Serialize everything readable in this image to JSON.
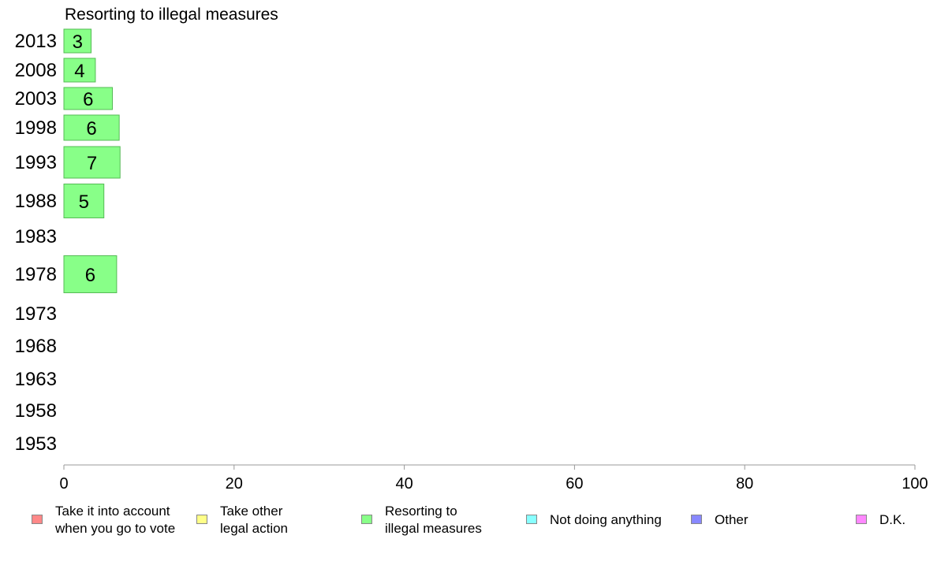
{
  "chart_data": {
    "type": "bar",
    "orientation": "horizontal",
    "title": "Resorting to illegal measures",
    "xlabel": "",
    "ylabel": "",
    "xlim": [
      0,
      100
    ],
    "x_ticks": [
      "0",
      "20",
      "40",
      "60",
      "80",
      "100"
    ],
    "categories": [
      "2013",
      "2008",
      "2003",
      "1998",
      "1993",
      "1988",
      "1983",
      "1978",
      "1973",
      "1968",
      "1963",
      "1958",
      "1953"
    ],
    "series": [
      {
        "name": "Resorting to illegal measures",
        "color": "#88ff88",
        "values": [
          3,
          4,
          6,
          6,
          7,
          5,
          null,
          6,
          null,
          null,
          null,
          null,
          null
        ],
        "bar_lengths": [
          3.2,
          3.7,
          5.7,
          6.5,
          6.6,
          4.7,
          null,
          6.2,
          null,
          null,
          null,
          null,
          null
        ]
      }
    ],
    "grid": false,
    "legend_position": "bottom",
    "legend": [
      {
        "label": "Take it into account\nwhen you go to vote",
        "color": "#ff8888"
      },
      {
        "label": "Take other\nlegal action",
        "color": "#ffff88"
      },
      {
        "label": "Resorting to\nillegal measures",
        "color": "#88ff88"
      },
      {
        "label": "Not doing anything",
        "color": "#88ffff"
      },
      {
        "label": "Other",
        "color": "#8888ff"
      },
      {
        "label": "D.K.",
        "color": "#ff88ff"
      }
    ]
  }
}
